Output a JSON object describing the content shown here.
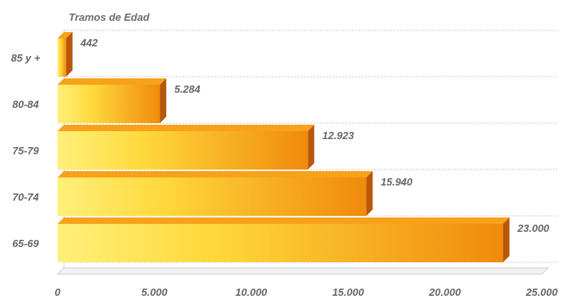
{
  "chart_data": {
    "type": "bar",
    "orientation": "horizontal",
    "title": "Tramos de Edad",
    "categories": [
      "85 y +",
      "80-84",
      "75-79",
      "70-74",
      "65-69"
    ],
    "values": [
      442,
      5284,
      12923,
      15940,
      23000
    ],
    "value_labels": [
      "442",
      "5.284",
      "12.923",
      "15.940",
      "23.000"
    ],
    "xlim": [
      0,
      25000
    ],
    "x_ticks": [
      {
        "value": 0,
        "label": "0"
      },
      {
        "value": 5000,
        "label": "5.000"
      },
      {
        "value": 10000,
        "label": "10.000"
      },
      {
        "value": 15000,
        "label": "15.000"
      },
      {
        "value": 20000,
        "label": "20.000"
      },
      {
        "value": 25000,
        "label": "25.000"
      }
    ],
    "grid": true,
    "style": "3d",
    "colors": {
      "bar_light": "#ffe24a",
      "bar_dark": "#f08a0c",
      "bar_top": "#f7a21a",
      "bar_side": "#b8560a",
      "text": "#666666",
      "grid": "#c9c9c9"
    }
  }
}
